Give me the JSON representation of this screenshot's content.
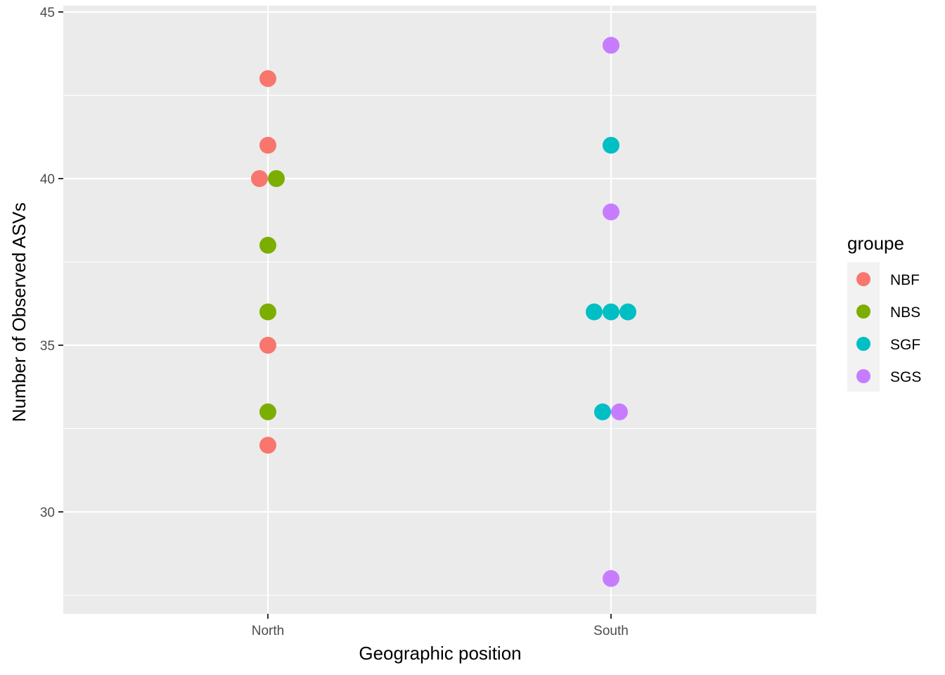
{
  "chart_data": {
    "type": "scatter",
    "title": "",
    "xlabel": "Geographic position",
    "ylabel": "Number of Observed ASVs",
    "categories": [
      "North",
      "South"
    ],
    "ylim": [
      27.1,
      45.2
    ],
    "yticks": [
      30,
      35,
      40,
      45
    ],
    "grid": true,
    "legend": {
      "title": "groupe",
      "position": "right"
    },
    "series": [
      {
        "name": "NBF",
        "color": "#F8766D",
        "points": [
          {
            "x": "North",
            "y": 43
          },
          {
            "x": "North",
            "y": 41
          },
          {
            "x": "North",
            "y": 40
          },
          {
            "x": "North",
            "y": 35
          },
          {
            "x": "North",
            "y": 32
          }
        ]
      },
      {
        "name": "NBS",
        "color": "#7CAE00",
        "points": [
          {
            "x": "North",
            "y": 40
          },
          {
            "x": "North",
            "y": 38
          },
          {
            "x": "North",
            "y": 36
          },
          {
            "x": "North",
            "y": 33
          }
        ]
      },
      {
        "name": "SGF",
        "color": "#00BFC4",
        "points": [
          {
            "x": "South",
            "y": 41
          },
          {
            "x": "South",
            "y": 36
          },
          {
            "x": "South",
            "y": 36
          },
          {
            "x": "South",
            "y": 36
          },
          {
            "x": "South",
            "y": 33
          }
        ]
      },
      {
        "name": "SGS",
        "color": "#C77CFF",
        "points": [
          {
            "x": "South",
            "y": 44
          },
          {
            "x": "South",
            "y": 39
          },
          {
            "x": "South",
            "y": 33
          },
          {
            "x": "South",
            "y": 28
          }
        ]
      }
    ]
  }
}
